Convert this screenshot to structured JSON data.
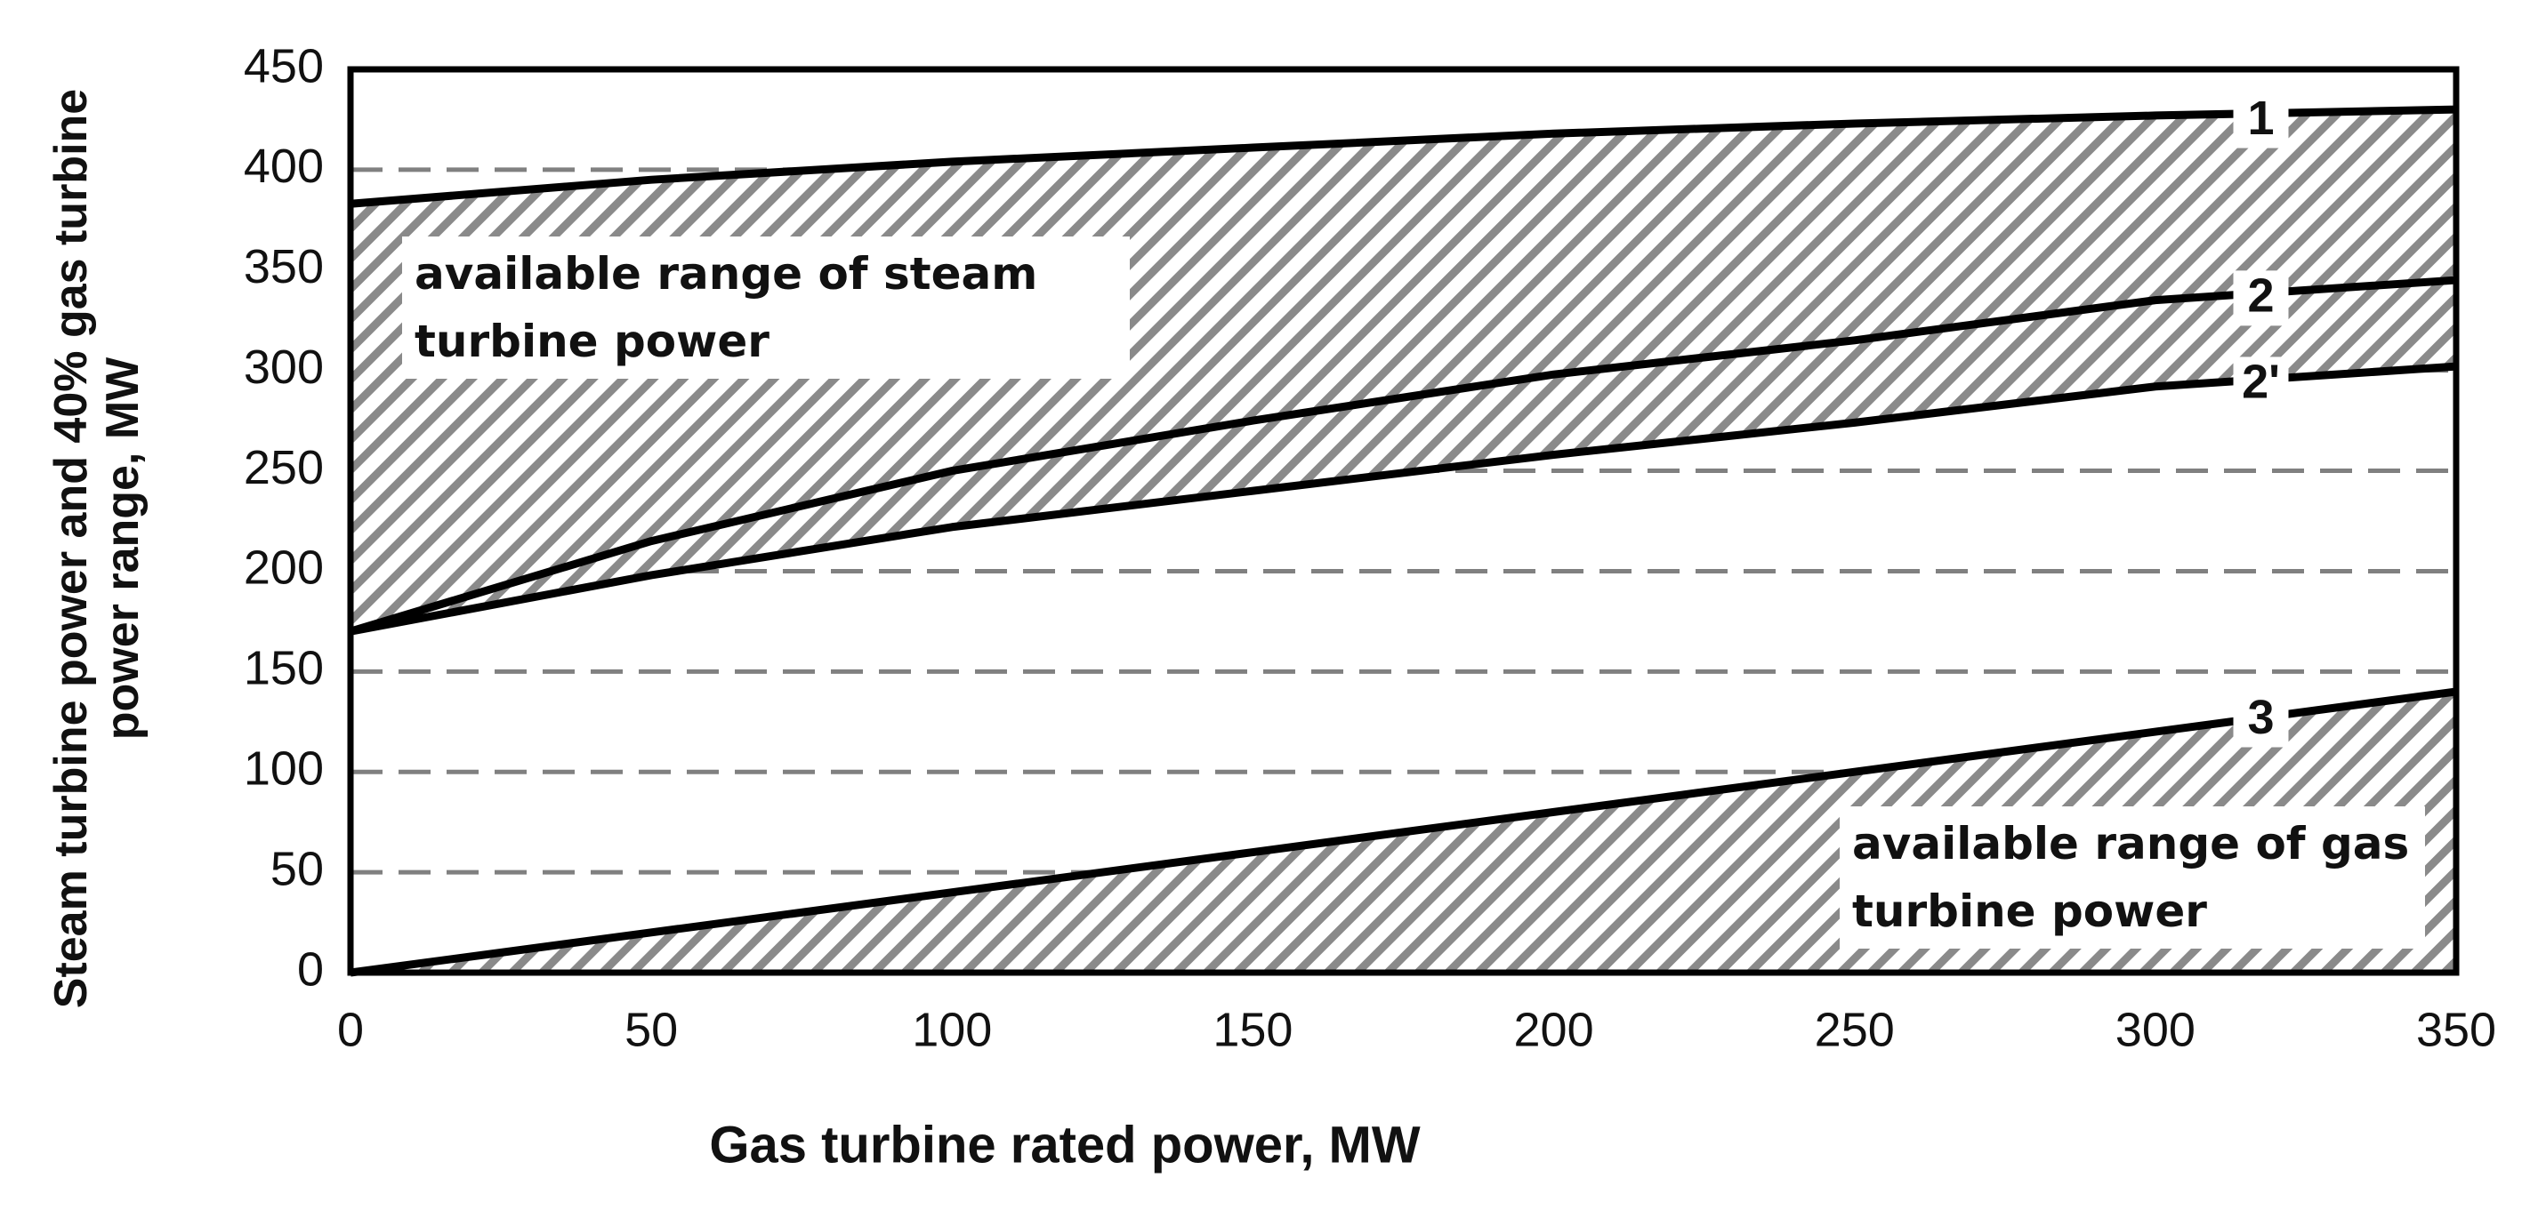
{
  "chart_data": {
    "type": "line",
    "xlabel": "Gas turbine rated power, MW",
    "ylabel": "Steam turbine power and 40% gas turbine power range, MW",
    "x": [
      0,
      50,
      100,
      150,
      200,
      250,
      300,
      350
    ],
    "series": [
      {
        "name": "1",
        "color": "#000000",
        "values": [
          383,
          395,
          404,
          411,
          418,
          423,
          427,
          430
        ]
      },
      {
        "name": "2",
        "color": "#000000",
        "values": [
          170,
          215,
          250,
          275,
          298,
          315,
          335,
          345
        ]
      },
      {
        "name": "2'",
        "color": "#000000",
        "values": [
          170,
          198,
          222,
          240,
          258,
          274,
          292,
          302
        ]
      },
      {
        "name": "3",
        "color": "#000000",
        "values": [
          0,
          20,
          40,
          60,
          80,
          100,
          120,
          140
        ]
      }
    ],
    "annotations": [
      "available range of steam turbine power",
      "available range of gas turbine power"
    ],
    "xlim": [
      0,
      350
    ],
    "xticks": [
      0,
      50,
      100,
      150,
      200,
      250,
      300,
      350
    ],
    "ylim": [
      0,
      450
    ],
    "yticks": [
      0,
      50,
      100,
      150,
      200,
      250,
      300,
      350,
      400,
      450
    ],
    "grid": true
  }
}
